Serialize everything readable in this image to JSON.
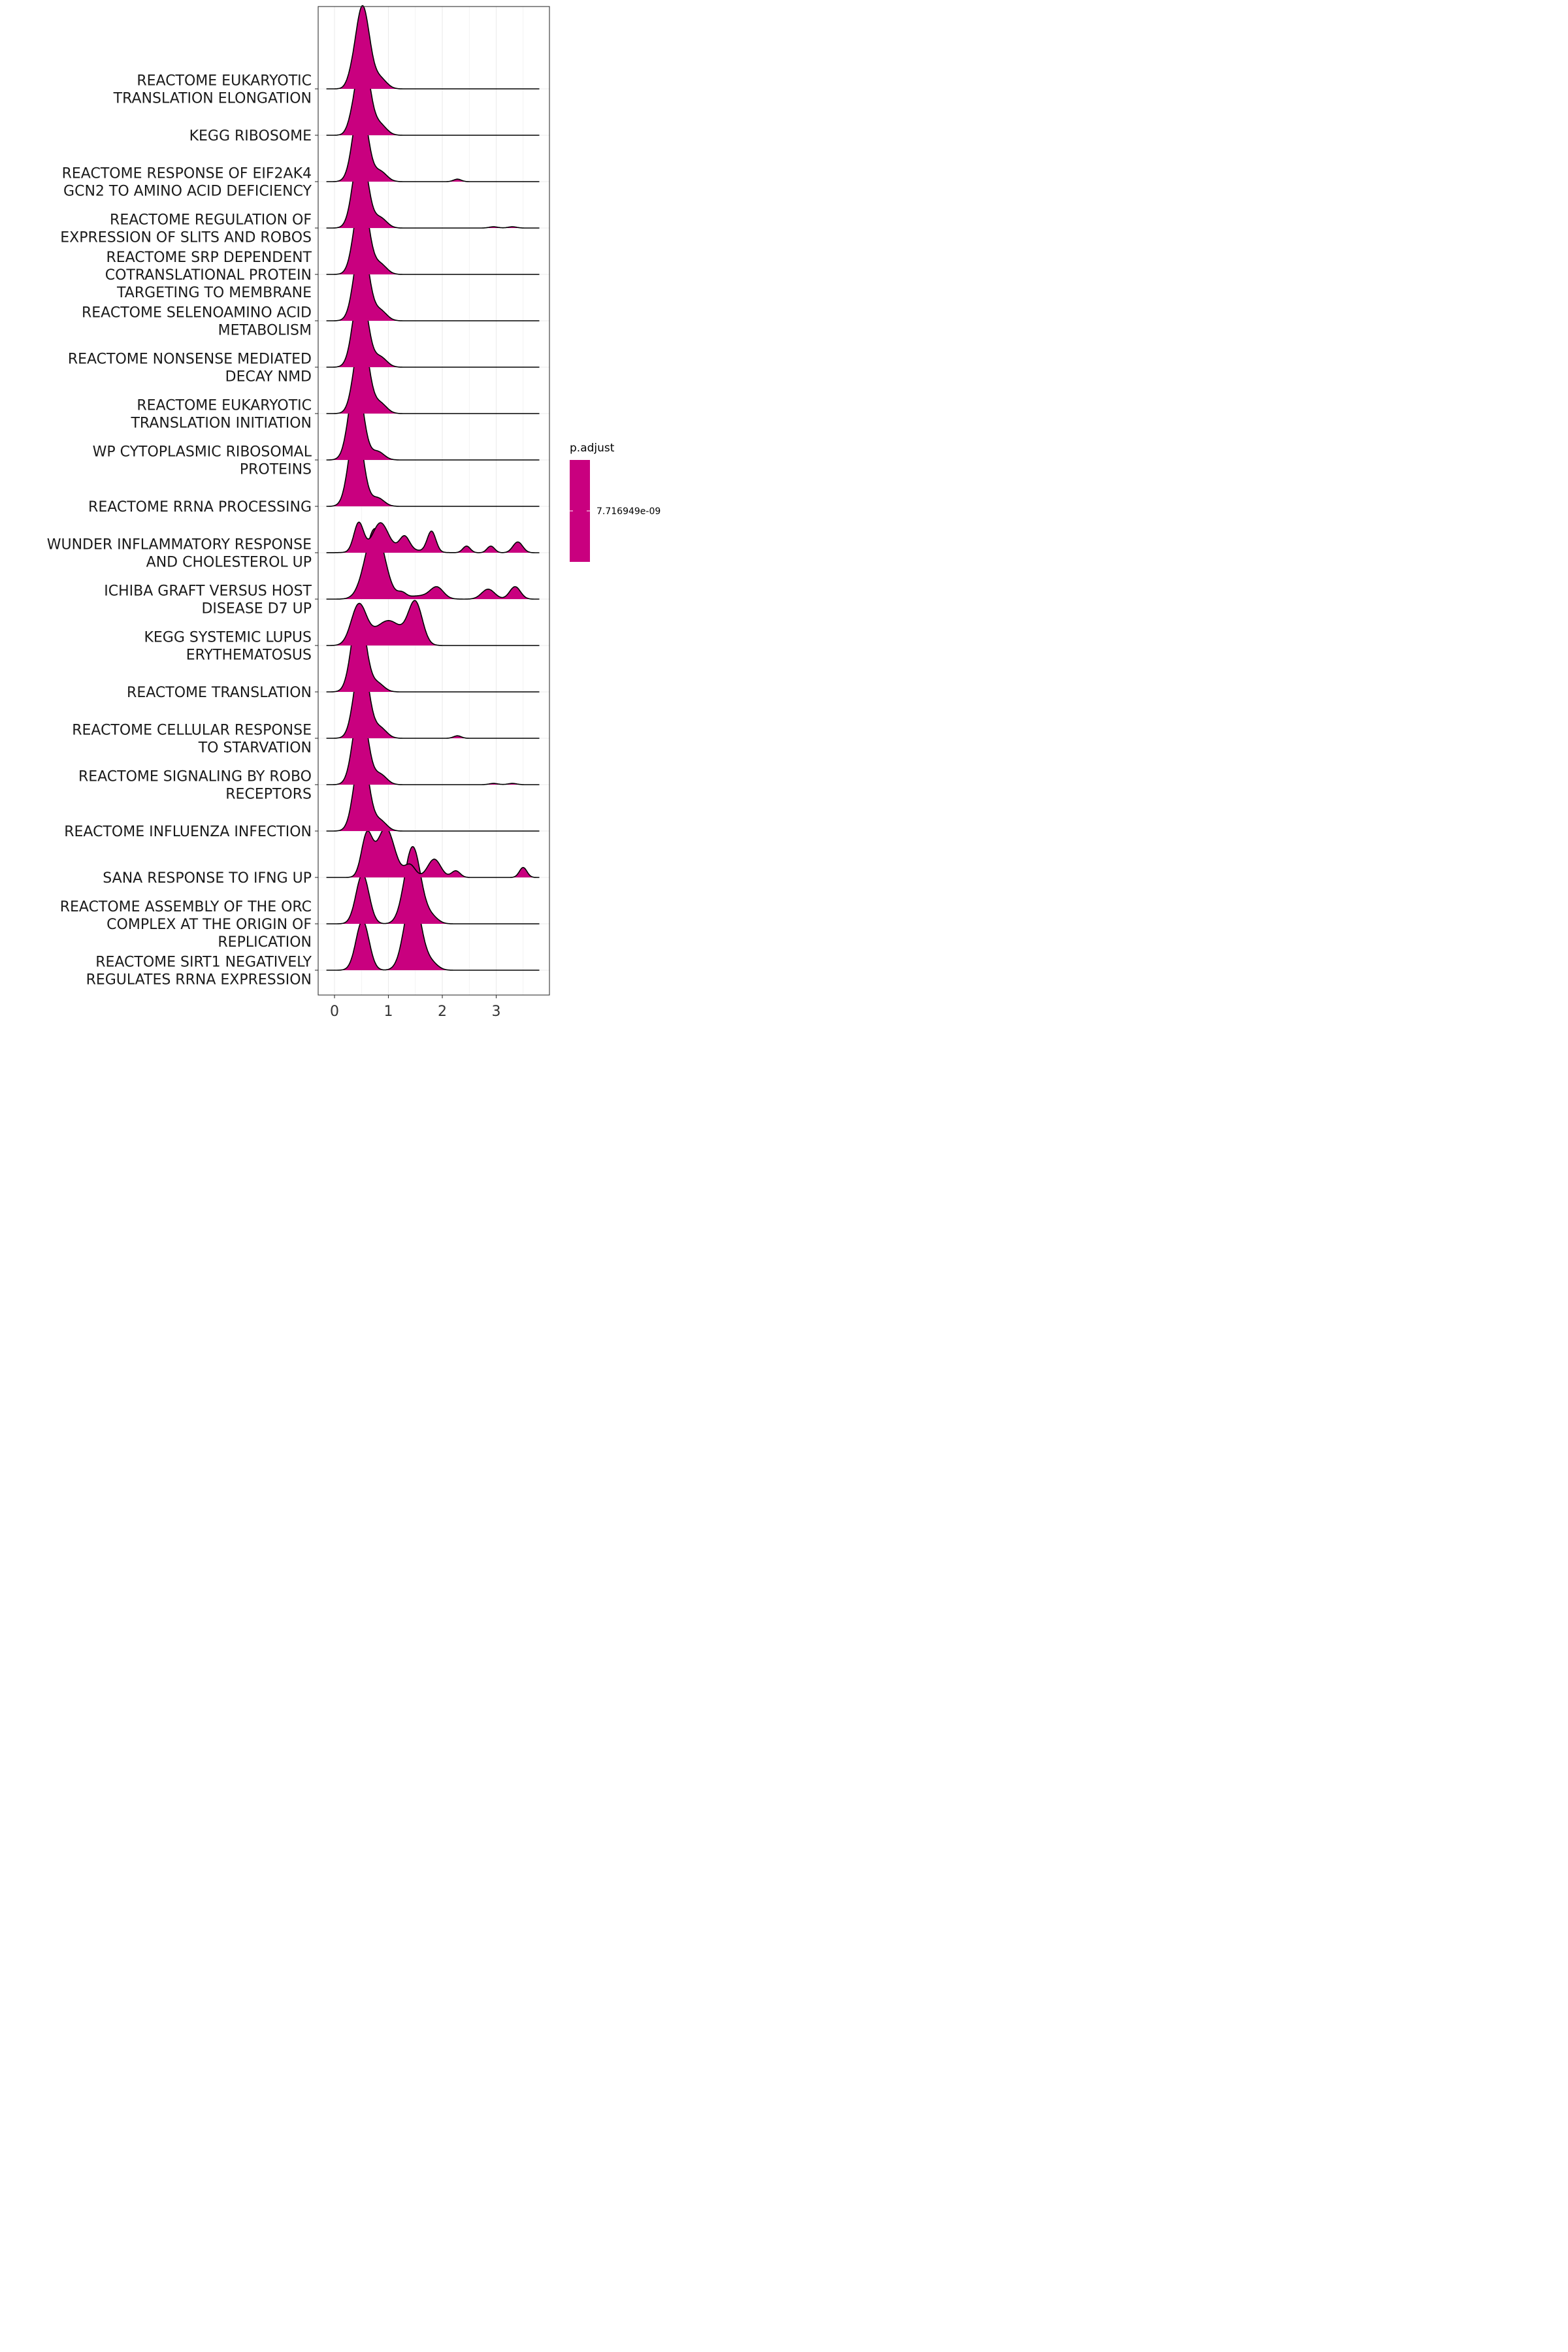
{
  "chart_data": {
    "type": "ridgeline",
    "xlabel": "",
    "ylabel": "",
    "xlim": [
      -0.15,
      4.0
    ],
    "xticks": [
      "0",
      "1",
      "2",
      "3"
    ],
    "grid": true,
    "fill_color": "#C9007F",
    "legend": {
      "title": "p.adjust",
      "label": "7.716949e-09",
      "placement": "right"
    },
    "categories": [
      [
        "REACTOME EUKARYOTIC",
        "TRANSLATION ELONGATION"
      ],
      [
        "KEGG RIBOSOME"
      ],
      [
        "REACTOME RESPONSE OF EIF2AK4",
        "GCN2 TO AMINO ACID DEFICIENCY"
      ],
      [
        "REACTOME REGULATION OF",
        "EXPRESSION OF SLITS AND ROBOS"
      ],
      [
        "REACTOME SRP DEPENDENT",
        "COTRANSLATIONAL PROTEIN",
        "TARGETING TO MEMBRANE"
      ],
      [
        "REACTOME SELENOAMINO ACID",
        "METABOLISM"
      ],
      [
        "REACTOME NONSENSE MEDIATED",
        "DECAY NMD"
      ],
      [
        "REACTOME EUKARYOTIC",
        "TRANSLATION INITIATION"
      ],
      [
        "WP CYTOPLASMIC RIBOSOMAL",
        "PROTEINS"
      ],
      [
        "REACTOME RRNA PROCESSING"
      ],
      [
        "WUNDER INFLAMMATORY RESPONSE",
        "AND CHOLESTEROL UP"
      ],
      [
        "ICHIBA GRAFT VERSUS HOST",
        "DISEASE D7 UP"
      ],
      [
        "KEGG SYSTEMIC LUPUS",
        "ERYTHEMATOSUS"
      ],
      [
        "REACTOME TRANSLATION"
      ],
      [
        "REACTOME CELLULAR RESPONSE",
        "TO STARVATION"
      ],
      [
        "REACTOME SIGNALING BY ROBO",
        "RECEPTORS"
      ],
      [
        "REACTOME INFLUENZA INFECTION"
      ],
      [
        "SANA RESPONSE TO IFNG UP"
      ],
      [
        "REACTOME ASSEMBLY OF THE ORC",
        "COMPLEX AT THE ORIGIN OF",
        "REPLICATION"
      ],
      [
        "REACTOME SIRT1 NEGATIVELY",
        "REGULATES RRNA EXPRESSION"
      ]
    ],
    "series": [
      {
        "range": [
          -0.15,
          3.8
        ],
        "components": [
          [
            0.52,
            0.13,
            1.0
          ],
          [
            0.85,
            0.12,
            0.12
          ],
          [
            0.3,
            0.08,
            0.05
          ]
        ]
      },
      {
        "range": [
          -0.15,
          3.8
        ],
        "components": [
          [
            0.52,
            0.13,
            1.0
          ],
          [
            0.85,
            0.12,
            0.12
          ],
          [
            0.3,
            0.08,
            0.05
          ]
        ]
      },
      {
        "range": [
          -0.15,
          3.8
        ],
        "components": [
          [
            0.48,
            0.13,
            1.0
          ],
          [
            0.85,
            0.12,
            0.12
          ],
          [
            2.28,
            0.07,
            0.03
          ]
        ]
      },
      {
        "range": [
          -0.15,
          3.8
        ],
        "components": [
          [
            0.48,
            0.13,
            1.0
          ],
          [
            0.85,
            0.12,
            0.12
          ],
          [
            2.95,
            0.08,
            0.015
          ],
          [
            3.3,
            0.08,
            0.015
          ]
        ]
      },
      {
        "range": [
          -0.15,
          3.8
        ],
        "components": [
          [
            0.5,
            0.13,
            1.0
          ],
          [
            0.85,
            0.12,
            0.12
          ]
        ]
      },
      {
        "range": [
          -0.15,
          3.8
        ],
        "components": [
          [
            0.5,
            0.13,
            1.0
          ],
          [
            0.85,
            0.12,
            0.12
          ]
        ]
      },
      {
        "range": [
          -0.15,
          3.8
        ],
        "components": [
          [
            0.48,
            0.13,
            1.0
          ],
          [
            0.85,
            0.12,
            0.12
          ]
        ]
      },
      {
        "range": [
          -0.15,
          3.8
        ],
        "components": [
          [
            0.5,
            0.13,
            1.0
          ],
          [
            0.85,
            0.12,
            0.12
          ]
        ]
      },
      {
        "range": [
          -0.15,
          3.8
        ],
        "components": [
          [
            0.4,
            0.13,
            1.0
          ],
          [
            0.8,
            0.12,
            0.1
          ]
        ]
      },
      {
        "range": [
          -0.15,
          3.8
        ],
        "components": [
          [
            0.4,
            0.13,
            1.0
          ],
          [
            0.8,
            0.12,
            0.1
          ]
        ]
      },
      {
        "range": [
          -0.15,
          3.8
        ],
        "components": [
          [
            0.45,
            0.09,
            0.35
          ],
          [
            0.85,
            0.14,
            0.32
          ],
          [
            1.3,
            0.09,
            0.16
          ],
          [
            1.8,
            0.08,
            0.25
          ],
          [
            2.45,
            0.07,
            0.08
          ],
          [
            2.9,
            0.07,
            0.08
          ],
          [
            3.4,
            0.09,
            0.13
          ],
          [
            1.1,
            0.4,
            0.05
          ]
        ]
      },
      {
        "range": [
          -0.15,
          3.8
        ],
        "components": [
          [
            0.75,
            0.18,
            0.85
          ],
          [
            1.25,
            0.08,
            0.06
          ],
          [
            1.9,
            0.12,
            0.13
          ],
          [
            2.85,
            0.12,
            0.12
          ],
          [
            3.35,
            0.1,
            0.15
          ],
          [
            1.6,
            0.25,
            0.04
          ]
        ]
      },
      {
        "range": [
          -0.15,
          3.8
        ],
        "components": [
          [
            0.45,
            0.14,
            0.48
          ],
          [
            1.0,
            0.25,
            0.3
          ],
          [
            1.5,
            0.13,
            0.5
          ]
        ]
      },
      {
        "range": [
          -0.15,
          3.8
        ],
        "components": [
          [
            0.45,
            0.13,
            1.0
          ],
          [
            0.8,
            0.12,
            0.1
          ]
        ]
      },
      {
        "range": [
          -0.15,
          3.8
        ],
        "components": [
          [
            0.5,
            0.13,
            1.0
          ],
          [
            0.85,
            0.12,
            0.12
          ],
          [
            2.28,
            0.07,
            0.03
          ]
        ]
      },
      {
        "range": [
          -0.15,
          3.8
        ],
        "components": [
          [
            0.48,
            0.13,
            1.0
          ],
          [
            0.85,
            0.12,
            0.12
          ],
          [
            2.95,
            0.08,
            0.015
          ],
          [
            3.3,
            0.08,
            0.015
          ]
        ]
      },
      {
        "range": [
          -0.15,
          3.8
        ],
        "components": [
          [
            0.5,
            0.13,
            1.0
          ],
          [
            0.85,
            0.12,
            0.12
          ]
        ]
      },
      {
        "range": [
          -0.15,
          3.8
        ],
        "components": [
          [
            0.6,
            0.1,
            0.5
          ],
          [
            0.95,
            0.16,
            0.6
          ],
          [
            1.4,
            0.1,
            0.15
          ],
          [
            1.85,
            0.12,
            0.22
          ],
          [
            2.25,
            0.08,
            0.08
          ],
          [
            3.5,
            0.07,
            0.12
          ]
        ]
      },
      {
        "range": [
          -0.15,
          3.8
        ],
        "components": [
          [
            0.52,
            0.12,
            0.6
          ],
          [
            1.45,
            0.15,
            0.93
          ],
          [
            1.8,
            0.12,
            0.08
          ]
        ]
      },
      {
        "range": [
          -0.15,
          3.8
        ],
        "components": [
          [
            0.52,
            0.12,
            0.6
          ],
          [
            1.45,
            0.15,
            0.93
          ],
          [
            1.8,
            0.12,
            0.08
          ]
        ]
      }
    ]
  }
}
